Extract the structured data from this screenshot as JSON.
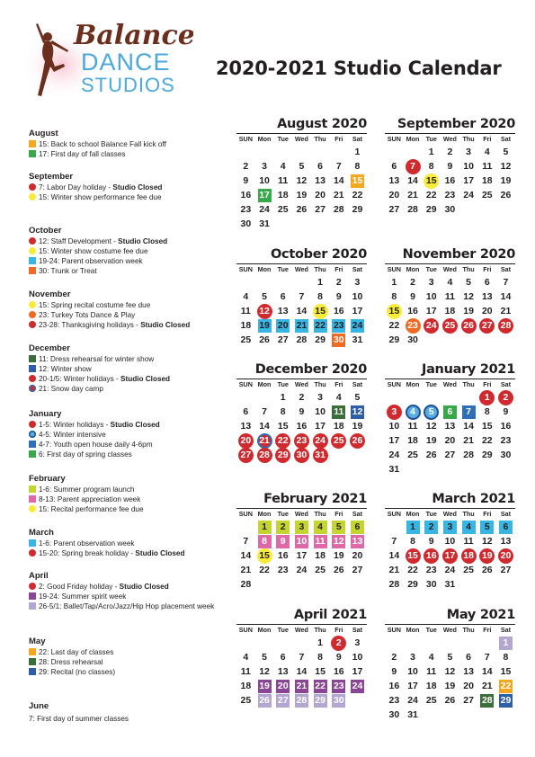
{
  "brand": {
    "line1": "Balance",
    "line2": "DANCE",
    "line3": "STUDIOS"
  },
  "title": "2020-2021 Studio Calendar",
  "colors": {
    "red": "#d02a2e",
    "yellow": "#f7ec3a",
    "orange": "#ef6a22",
    "amber": "#f5a71f",
    "green": "#37a94a",
    "cyan": "#37b6e3",
    "purple": "#8a4596",
    "lavender": "#b3a6d0",
    "pink": "#df69a8",
    "lime": "#c3d52e",
    "darkgreen": "#3b6e3a",
    "navy": "#2f5ea8",
    "blue": "#2e6fb5",
    "lightblue": "#58aee1"
  },
  "legend": [
    {
      "month": "August",
      "items": [
        {
          "text": "15: Back to school Balance Fall kick off",
          "bold": "",
          "color": "amber",
          "shape": "square"
        },
        {
          "text": "17: First day of fall classes",
          "bold": "",
          "color": "green",
          "shape": "square"
        }
      ]
    },
    {
      "month": "September",
      "items": [
        {
          "text": "7: Labor Day holiday - ",
          "bold": "Studio Closed",
          "color": "red",
          "shape": "circle"
        },
        {
          "text": "15: Winter show performance fee due",
          "bold": "",
          "color": "yellow",
          "shape": "circle"
        }
      ]
    },
    {
      "month": "October",
      "items": [
        {
          "text": "12: Staff Development - ",
          "bold": "Studio Closed",
          "color": "red",
          "shape": "circle"
        },
        {
          "text": "15: Winter show costume fee due",
          "bold": "",
          "color": "yellow",
          "shape": "circle"
        },
        {
          "text": "19-24: Parent observation week",
          "bold": "",
          "color": "cyan",
          "shape": "square"
        },
        {
          "text": "30: Trunk or Treat",
          "bold": "",
          "color": "orange",
          "shape": "square"
        }
      ]
    },
    {
      "month": "November",
      "items": [
        {
          "text": "15: Spring recital costume fee due",
          "bold": "",
          "color": "yellow",
          "shape": "circle"
        },
        {
          "text": "23: Turkey Tots Dance & Play",
          "bold": "",
          "color": "orange",
          "shape": "circle"
        },
        {
          "text": "23-28: Thanksgiving holidays - ",
          "bold": "Studio Closed",
          "color": "red",
          "shape": "circle"
        }
      ]
    },
    {
      "month": "December",
      "items": [
        {
          "text": "11: Dress rehearsal for winter show",
          "bold": "",
          "color": "darkgreen",
          "shape": "square"
        },
        {
          "text": "12: Winter show",
          "bold": "",
          "color": "navy",
          "shape": "square"
        },
        {
          "text": "20-1/5: Winter holidays - ",
          "bold": "Studio Closed",
          "color": "red",
          "shape": "circle"
        },
        {
          "text": "21: Snow day camp",
          "bold": "",
          "color": "red",
          "shape": "ring"
        }
      ]
    },
    {
      "month": "January",
      "items": [
        {
          "text": "1-5: Winter holidays - ",
          "bold": "Studio Closed",
          "color": "red",
          "shape": "circle"
        },
        {
          "text": "4-5: Winter intensive",
          "bold": "",
          "color": "lightblue",
          "shape": "ringblue"
        },
        {
          "text": "4-7: Youth open house daily 4-6pm",
          "bold": "",
          "color": "blue",
          "shape": "square"
        },
        {
          "text": "6: First day of spring classes",
          "bold": "",
          "color": "green",
          "shape": "square"
        }
      ]
    },
    {
      "month": "February",
      "items": [
        {
          "text": "1-6: Summer program launch",
          "bold": "",
          "color": "lime",
          "shape": "square"
        },
        {
          "text": "8-13: Parent appreciation week",
          "bold": "",
          "color": "pink",
          "shape": "square"
        },
        {
          "text": "15: Recital performance fee due",
          "bold": "",
          "color": "yellow",
          "shape": "circle"
        }
      ]
    },
    {
      "month": "March",
      "items": [
        {
          "text": "1-6: Parent observation week",
          "bold": "",
          "color": "cyan",
          "shape": "square"
        },
        {
          "text": "15-20: Spring break holiday - ",
          "bold": "Studio Closed",
          "color": "red",
          "shape": "circle"
        }
      ]
    },
    {
      "month": "April",
      "items": [
        {
          "text": "2: Good Friday holiday - ",
          "bold": "Studio Closed",
          "color": "red",
          "shape": "circle"
        },
        {
          "text": "19-24: Summer spirit week",
          "bold": "",
          "color": "purple",
          "shape": "square"
        },
        {
          "text": "26-5/1: Ballet/Tap/Acro/Jazz/Hip Hop placement week",
          "bold": "",
          "color": "lavender",
          "shape": "square"
        }
      ]
    },
    {
      "month": "May",
      "items": [
        {
          "text": "22: Last day of classes",
          "bold": "",
          "color": "amber",
          "shape": "square"
        },
        {
          "text": "28: Dress rehearsal",
          "bold": "",
          "color": "darkgreen",
          "shape": "square"
        },
        {
          "text": "29: Recital (no classes)",
          "bold": "",
          "color": "navy",
          "shape": "square"
        }
      ]
    },
    {
      "month": "June",
      "items": [
        {
          "text": "7: First day of summer classes",
          "bold": "",
          "color": "",
          "shape": "none"
        }
      ]
    }
  ],
  "weekdays": [
    "SUN",
    "Mon",
    "Tue",
    "Wed",
    "Thu",
    "Fri",
    "Sat"
  ],
  "months": [
    {
      "title": "August 2020",
      "start": 6,
      "days": 31,
      "marks": {
        "15": [
          "amber",
          "sq"
        ],
        "17": [
          "green",
          "sq"
        ]
      }
    },
    {
      "title": "September 2020",
      "start": 2,
      "days": 30,
      "marks": {
        "7": [
          "red",
          "circ"
        ],
        "15": [
          "yellow",
          "circ"
        ]
      }
    },
    {
      "title": "October 2020",
      "start": 4,
      "days": 31,
      "marks": {
        "12": [
          "red",
          "circ"
        ],
        "15": [
          "yellow",
          "circ"
        ],
        "19": [
          "cyan",
          "sq"
        ],
        "20": [
          "cyan",
          "sq"
        ],
        "21": [
          "cyan",
          "sq"
        ],
        "22": [
          "cyan",
          "sq"
        ],
        "23": [
          "cyan",
          "sq"
        ],
        "24": [
          "cyan",
          "sq"
        ],
        "30": [
          "orange",
          "sq"
        ]
      }
    },
    {
      "title": "November 2020",
      "start": 0,
      "days": 30,
      "marks": {
        "15": [
          "yellow",
          "circ"
        ],
        "23": [
          "orange",
          "circ"
        ],
        "24": [
          "red",
          "circ"
        ],
        "25": [
          "red",
          "circ"
        ],
        "26": [
          "red",
          "circ"
        ],
        "27": [
          "red",
          "circ"
        ],
        "28": [
          "red",
          "circ"
        ]
      }
    },
    {
      "title": "December 2020",
      "start": 2,
      "days": 31,
      "marks": {
        "11": [
          "darkgreen",
          "sq"
        ],
        "12": [
          "navy",
          "sq"
        ],
        "20": [
          "red",
          "circ"
        ],
        "21": [
          "red",
          "ring"
        ],
        "22": [
          "red",
          "circ"
        ],
        "23": [
          "red",
          "circ"
        ],
        "24": [
          "red",
          "circ"
        ],
        "25": [
          "red",
          "circ"
        ],
        "26": [
          "red",
          "circ"
        ],
        "27": [
          "red",
          "circ"
        ],
        "28": [
          "red",
          "circ"
        ],
        "29": [
          "red",
          "circ"
        ],
        "30": [
          "red",
          "circ"
        ],
        "31": [
          "red",
          "circ"
        ]
      }
    },
    {
      "title": "January 2021",
      "start": 5,
      "days": 31,
      "marks": {
        "1": [
          "red",
          "circ"
        ],
        "2": [
          "red",
          "circ"
        ],
        "3": [
          "red",
          "circ"
        ],
        "4": [
          "lightblue",
          "ringblue"
        ],
        "5": [
          "lightblue",
          "ringblue"
        ],
        "6": [
          "green",
          "sq"
        ],
        "7": [
          "blue",
          "sq"
        ]
      }
    },
    {
      "title": "February 2021",
      "start": 1,
      "days": 28,
      "marks": {
        "1": [
          "lime",
          "sq"
        ],
        "2": [
          "lime",
          "sq"
        ],
        "3": [
          "lime",
          "sq"
        ],
        "4": [
          "lime",
          "sq"
        ],
        "5": [
          "lime",
          "sq"
        ],
        "6": [
          "lime",
          "sq"
        ],
        "8": [
          "pink",
          "sq"
        ],
        "9": [
          "pink",
          "sq"
        ],
        "10": [
          "pink",
          "sq"
        ],
        "11": [
          "pink",
          "sq"
        ],
        "12": [
          "pink",
          "sq"
        ],
        "13": [
          "pink",
          "sq"
        ],
        "15": [
          "yellow",
          "circ"
        ]
      }
    },
    {
      "title": "March 2021",
      "start": 1,
      "days": 31,
      "marks": {
        "1": [
          "cyan",
          "sq"
        ],
        "2": [
          "cyan",
          "sq"
        ],
        "3": [
          "cyan",
          "sq"
        ],
        "4": [
          "cyan",
          "sq"
        ],
        "5": [
          "cyan",
          "sq"
        ],
        "6": [
          "cyan",
          "sq"
        ],
        "15": [
          "red",
          "circ"
        ],
        "16": [
          "red",
          "circ"
        ],
        "17": [
          "red",
          "circ"
        ],
        "18": [
          "red",
          "circ"
        ],
        "19": [
          "red",
          "circ"
        ],
        "20": [
          "red",
          "circ"
        ]
      }
    },
    {
      "title": "April 2021",
      "start": 4,
      "days": 30,
      "marks": {
        "2": [
          "red",
          "circ"
        ],
        "19": [
          "purple",
          "sq"
        ],
        "20": [
          "purple",
          "sq"
        ],
        "21": [
          "purple",
          "sq"
        ],
        "22": [
          "purple",
          "sq"
        ],
        "23": [
          "purple",
          "sq"
        ],
        "24": [
          "purple",
          "sq"
        ],
        "26": [
          "lavender",
          "sq"
        ],
        "27": [
          "lavender",
          "sq"
        ],
        "28": [
          "lavender",
          "sq"
        ],
        "29": [
          "lavender",
          "sq"
        ],
        "30": [
          "lavender",
          "sq"
        ]
      }
    },
    {
      "title": "May 2021",
      "start": 6,
      "days": 31,
      "marks": {
        "1": [
          "lavender",
          "sq"
        ],
        "22": [
          "amber",
          "sq"
        ],
        "28": [
          "darkgreen",
          "sq"
        ],
        "29": [
          "navy",
          "sq"
        ]
      }
    }
  ]
}
